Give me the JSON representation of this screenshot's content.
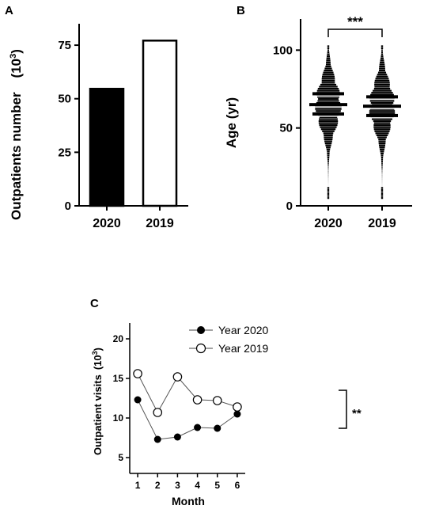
{
  "panels": {
    "A": {
      "letter": "A",
      "ylabel": "Outpatients number",
      "unit_base": "(10",
      "unit_exp": "3",
      "unit_close": ")",
      "yticks": [
        "0",
        "25",
        "50",
        "75"
      ],
      "categories": [
        "2020",
        "2019"
      ]
    },
    "B": {
      "letter": "B",
      "ylabel": "Age (yr)",
      "yticks": [
        "0",
        "50",
        "100"
      ],
      "categories": [
        "2020",
        "2019"
      ],
      "significance": "***"
    },
    "C": {
      "letter": "C",
      "ylabel": "Outpatient visits",
      "unit_base": "(10",
      "unit_exp": "3",
      "unit_close": ")",
      "xlabel": "Month",
      "yticks": [
        "5",
        "10",
        "15",
        "20"
      ],
      "xticks": [
        "1",
        "2",
        "3",
        "4",
        "5",
        "6"
      ],
      "legend": [
        "Year 2020",
        "Year 2019"
      ],
      "significance": "**"
    }
  },
  "chart_data": [
    {
      "type": "bar",
      "panel": "A",
      "categories": [
        "2020",
        "2019"
      ],
      "values": [
        55,
        77.5
      ],
      "fill": [
        "#000000",
        "#ffffff"
      ],
      "ylabel": "Outpatients number (10^3)",
      "ylim": [
        0,
        85
      ],
      "grid": false
    },
    {
      "type": "scatter",
      "subtype": "violin-dot",
      "panel": "B",
      "categories": [
        "2020",
        "2019"
      ],
      "series": [
        {
          "name": "2020",
          "mean": 65,
          "sd_upper": 72,
          "sd_lower": 59,
          "min": 5,
          "max": 103
        },
        {
          "name": "2019",
          "mean": 64,
          "sd_upper": 70,
          "sd_lower": 58,
          "min": 5,
          "max": 103
        }
      ],
      "ylabel": "Age (yr)",
      "ylim": [
        0,
        120
      ],
      "significance": "***",
      "grid": false
    },
    {
      "type": "line",
      "panel": "C",
      "x": [
        1,
        2,
        3,
        4,
        5,
        6
      ],
      "series": [
        {
          "name": "Year 2020",
          "marker": "filled-circle",
          "values": [
            12.3,
            7.3,
            7.6,
            8.8,
            8.7,
            10.5
          ]
        },
        {
          "name": "Year 2019",
          "marker": "open-circle",
          "values": [
            15.6,
            10.7,
            15.2,
            12.3,
            12.2,
            11.4
          ]
        }
      ],
      "xlabel": "Month",
      "ylabel": "Outpatient visits (10^3)",
      "ylim": [
        3,
        22
      ],
      "xlim": [
        0.6,
        6.4
      ],
      "legend_position": "top-left",
      "significance": "**",
      "grid": false
    }
  ]
}
